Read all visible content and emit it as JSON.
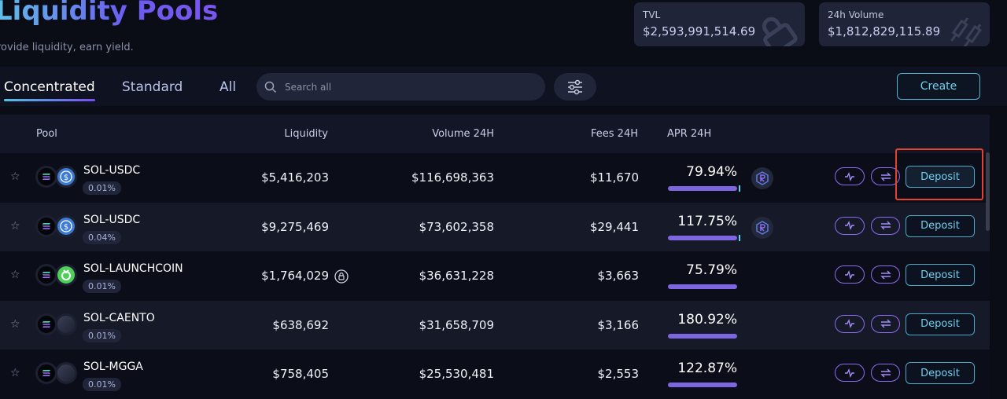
{
  "header": {
    "title": "Liquidity Pools",
    "subtitle": "rovide liquidity, earn yield."
  },
  "stats": [
    {
      "label": "TVL",
      "value": "$2,593,991,514.69",
      "icon": "lock-icon"
    },
    {
      "label": "24h Volume",
      "value": "$1,812,829,115.89",
      "icon": "candlestick-icon"
    }
  ],
  "tabs": [
    "Concentrated",
    "Standard",
    "All"
  ],
  "search": {
    "placeholder": "Search all",
    "value": ""
  },
  "create_label": "Create",
  "columns": [
    "Pool",
    "Liquidity",
    "Volume 24H",
    "Fees 24H",
    "APR 24H"
  ],
  "rows": [
    {
      "name": "SOL-USDC",
      "fee": "0.01%",
      "liquidity": "$5,416,203",
      "volume": "$116,698,363",
      "fees": "$11,670",
      "apr": "79.94%",
      "token2": "usdc",
      "raydium": true,
      "locked": false
    },
    {
      "name": "SOL-USDC",
      "fee": "0.04%",
      "liquidity": "$9,275,469",
      "volume": "$73,602,358",
      "fees": "$29,441",
      "apr": "117.75%",
      "token2": "usdc",
      "raydium": true,
      "locked": false
    },
    {
      "name": "SOL-LAUNCHCOIN",
      "fee": "0.01%",
      "liquidity": "$1,764,029",
      "volume": "$36,631,228",
      "fees": "$3,663",
      "apr": "75.79%",
      "token2": "launchcoin",
      "raydium": false,
      "locked": true
    },
    {
      "name": "SOL-CAENTO",
      "fee": "0.01%",
      "liquidity": "$638,692",
      "volume": "$31,658,709",
      "fees": "$3,166",
      "apr": "180.92%",
      "token2": "blank",
      "raydium": false,
      "locked": false
    },
    {
      "name": "SOL-MGGA",
      "fee": "0.01%",
      "liquidity": "$758,405",
      "volume": "$25,530,481",
      "fees": "$2,553",
      "apr": "122.87%",
      "token2": "blank",
      "raydium": false,
      "locked": false
    }
  ],
  "deposit_label": "Deposit",
  "colors": {
    "accent": "#7e66e0",
    "cyan": "#6fd0ee",
    "highlight": "#e5432f"
  }
}
